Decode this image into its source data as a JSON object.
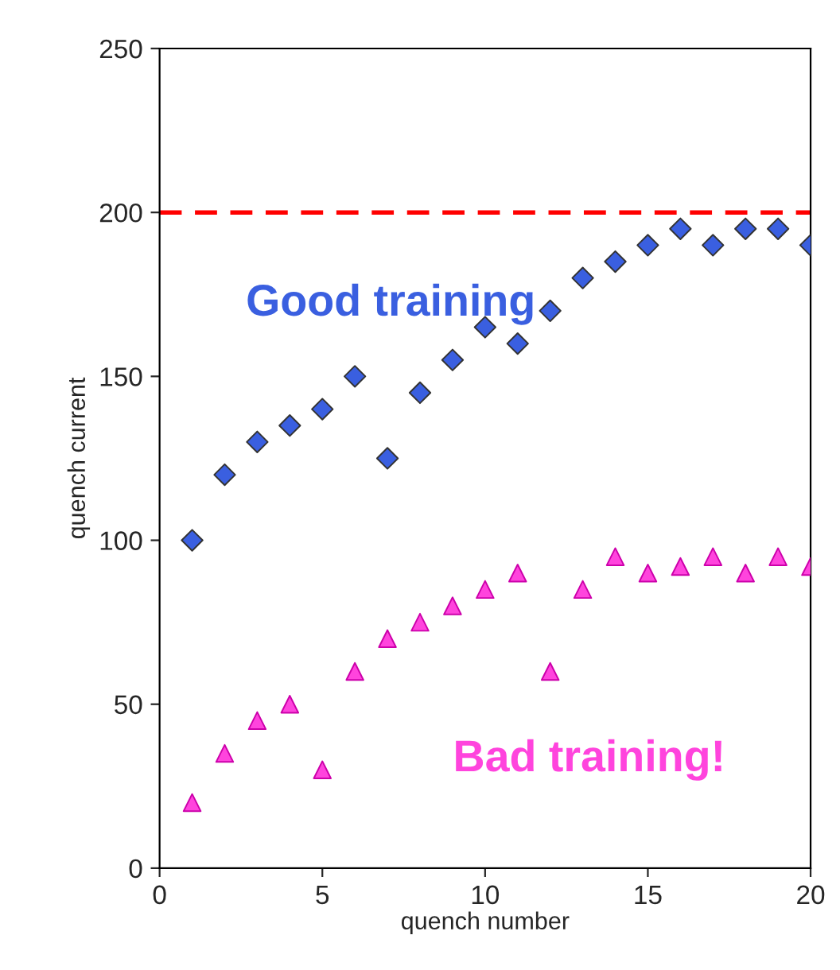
{
  "chart_data": {
    "type": "scatter",
    "xlabel": "quench number",
    "ylabel": "quench current",
    "x": [
      1,
      2,
      3,
      4,
      5,
      6,
      7,
      8,
      9,
      10,
      11,
      12,
      13,
      14,
      15,
      16,
      17,
      18,
      19,
      20
    ],
    "series": [
      {
        "name": "Good training",
        "color": "#3a5fe0",
        "marker": "diamond",
        "values": [
          100,
          120,
          130,
          135,
          140,
          150,
          125,
          145,
          155,
          165,
          160,
          170,
          180,
          185,
          190,
          195,
          190,
          195,
          195,
          190
        ]
      },
      {
        "name": "Bad training!",
        "color": "#ff44dd",
        "marker": "triangle",
        "values": [
          20,
          35,
          45,
          50,
          30,
          60,
          70,
          75,
          80,
          85,
          90,
          60,
          85,
          95,
          90,
          92,
          95,
          90,
          95,
          92
        ]
      }
    ],
    "ref_lines": [
      {
        "axis": "y",
        "value": 200,
        "color": "#ff0000",
        "line_style": "dashed"
      }
    ],
    "xlim": [
      0,
      20
    ],
    "xticks": [
      0,
      5,
      10,
      15,
      20
    ],
    "ylim": [
      0,
      250
    ],
    "yticks": [
      0,
      50,
      100,
      150,
      200,
      250
    ],
    "grid": false,
    "legend": false
  }
}
